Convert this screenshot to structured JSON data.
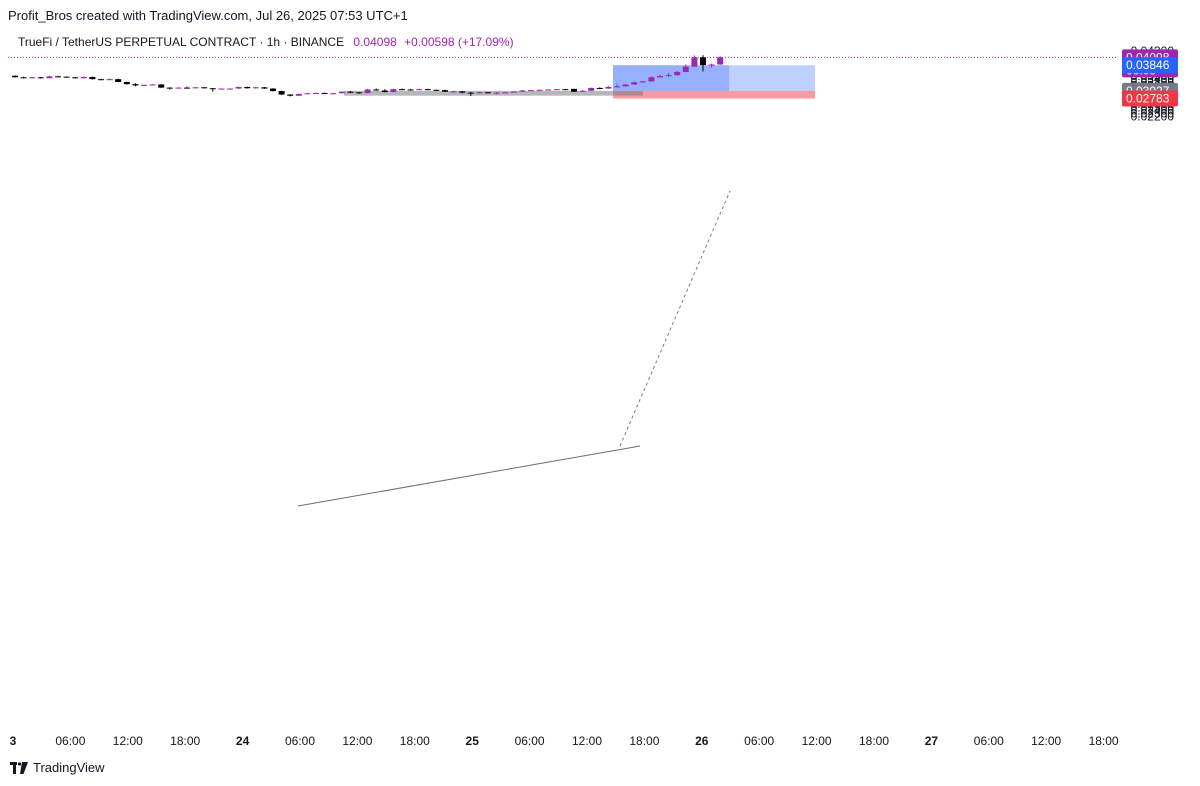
{
  "credit": "Profit_Bros created with TradingView.com, Jul 26, 2025 07:53 UTC+1",
  "legend": {
    "symbol": "TrueFi / TetherUS PERPETUAL CONTRACT · 1h · BINANCE",
    "last": "0.04098",
    "change": "+0.00598 (+17.09%)"
  },
  "footer": {
    "brand": "TradingView"
  },
  "colors": {
    "up": "#9c27b0",
    "down": "#000000",
    "target_zone": "#2962ff",
    "stop_zone": "#f23645",
    "range_box": "#787b86"
  },
  "chart_data": {
    "type": "candlestick",
    "timeframe": "1h",
    "y_ticks": [
      "0.04300",
      "0.04200",
      "0.04100",
      "0.04000",
      "0.03900",
      "0.03800",
      "0.03700",
      "0.03600",
      "0.03500",
      "0.03400",
      "0.03300",
      "0.03200",
      "0.03100",
      "0.03000",
      "0.02900",
      "0.02800",
      "0.02700",
      "0.02600",
      "0.02500",
      "0.02400",
      "0.02300",
      "0.02200"
    ],
    "x_ticks": [
      {
        "label": "3",
        "bold": true
      },
      {
        "label": "06:00",
        "bold": false
      },
      {
        "label": "12:00",
        "bold": false
      },
      {
        "label": "18:00",
        "bold": false
      },
      {
        "label": "24",
        "bold": true
      },
      {
        "label": "06:00",
        "bold": false
      },
      {
        "label": "12:00",
        "bold": false
      },
      {
        "label": "18:00",
        "bold": false
      },
      {
        "label": "25",
        "bold": true
      },
      {
        "label": "06:00",
        "bold": false
      },
      {
        "label": "12:00",
        "bold": false
      },
      {
        "label": "18:00",
        "bold": false
      },
      {
        "label": "26",
        "bold": true
      },
      {
        "label": "06:00",
        "bold": false
      },
      {
        "label": "12:00",
        "bold": false
      },
      {
        "label": "18:00",
        "bold": false
      },
      {
        "label": "27",
        "bold": true
      },
      {
        "label": "06:00",
        "bold": false
      },
      {
        "label": "12:00",
        "bold": false
      },
      {
        "label": "18:00",
        "bold": false
      }
    ],
    "price_tags": [
      {
        "value": "0.04098",
        "sub": "06:08",
        "color": "#9c27b0"
      },
      {
        "value": "0.03846",
        "color": "#2962ff"
      },
      {
        "value": "0.03027",
        "color": "#787b86"
      },
      {
        "value": "0.02783",
        "color": "#f23645"
      }
    ],
    "last_price": 0.04098,
    "position": {
      "entry": 0.03027,
      "target": 0.03846,
      "stop": 0.02783
    },
    "range_box": {
      "top": 0.03025,
      "bottom": 0.02873
    },
    "candles": [
      [
        0.0351,
        0.0352,
        0.0345,
        0.0346
      ],
      [
        0.0346,
        0.0348,
        0.0342,
        0.0344
      ],
      [
        0.0344,
        0.0347,
        0.0342,
        0.0346
      ],
      [
        0.0346,
        0.0347,
        0.0342,
        0.0343
      ],
      [
        0.0343,
        0.035,
        0.0342,
        0.0349
      ],
      [
        0.0349,
        0.0351,
        0.0347,
        0.0348
      ],
      [
        0.0348,
        0.0349,
        0.0345,
        0.0346
      ],
      [
        0.0346,
        0.0347,
        0.0342,
        0.0343
      ],
      [
        0.0343,
        0.0348,
        0.0342,
        0.0347
      ],
      [
        0.0347,
        0.0348,
        0.0339,
        0.034
      ],
      [
        0.034,
        0.0341,
        0.0336,
        0.0338
      ],
      [
        0.0338,
        0.0342,
        0.0337,
        0.034
      ],
      [
        0.034,
        0.0341,
        0.033,
        0.0331
      ],
      [
        0.0331,
        0.0332,
        0.0323,
        0.0324
      ],
      [
        0.0324,
        0.0327,
        0.0317,
        0.032
      ],
      [
        0.032,
        0.0323,
        0.0319,
        0.0322
      ],
      [
        0.0322,
        0.0324,
        0.032,
        0.0323
      ],
      [
        0.0323,
        0.0324,
        0.0312,
        0.0313
      ],
      [
        0.0313,
        0.0314,
        0.0307,
        0.0311
      ],
      [
        0.0311,
        0.0314,
        0.031,
        0.0313
      ],
      [
        0.0313,
        0.0316,
        0.0311,
        0.0312
      ],
      [
        0.0312,
        0.0315,
        0.031,
        0.0314
      ],
      [
        0.0314,
        0.0315,
        0.031,
        0.0311
      ],
      [
        0.0311,
        0.0312,
        0.03,
        0.0309
      ],
      [
        0.0309,
        0.0311,
        0.0307,
        0.031
      ],
      [
        0.031,
        0.0311,
        0.0309,
        0.031
      ],
      [
        0.031,
        0.0316,
        0.0309,
        0.0315
      ],
      [
        0.0315,
        0.0316,
        0.031,
        0.0311
      ],
      [
        0.0311,
        0.0315,
        0.031,
        0.0314
      ],
      [
        0.0314,
        0.0315,
        0.0309,
        0.031
      ],
      [
        0.031,
        0.0311,
        0.0301,
        0.0302
      ],
      [
        0.0302,
        0.0303,
        0.0289,
        0.0291
      ],
      [
        0.0291,
        0.0292,
        0.0285,
        0.0287
      ],
      [
        0.0287,
        0.0294,
        0.0286,
        0.0293
      ],
      [
        0.0293,
        0.0296,
        0.0292,
        0.0295
      ],
      [
        0.0295,
        0.0297,
        0.0293,
        0.0296
      ],
      [
        0.0296,
        0.0297,
        0.0294,
        0.0295
      ],
      [
        0.0295,
        0.0296,
        0.0292,
        0.0295
      ],
      [
        0.0295,
        0.0301,
        0.0294,
        0.03
      ],
      [
        0.03,
        0.0302,
        0.0296,
        0.0298
      ],
      [
        0.0298,
        0.0299,
        0.0294,
        0.0296
      ],
      [
        0.0296,
        0.0309,
        0.0295,
        0.0307
      ],
      [
        0.0307,
        0.031,
        0.0303,
        0.0304
      ],
      [
        0.0304,
        0.0308,
        0.0298,
        0.0299
      ],
      [
        0.0299,
        0.0309,
        0.0298,
        0.0308
      ],
      [
        0.0308,
        0.031,
        0.0305,
        0.0307
      ],
      [
        0.0307,
        0.0309,
        0.0305,
        0.0306
      ],
      [
        0.0306,
        0.031,
        0.0305,
        0.0308
      ],
      [
        0.0308,
        0.0309,
        0.0305,
        0.0306
      ],
      [
        0.0306,
        0.0307,
        0.0303,
        0.0305
      ],
      [
        0.0305,
        0.0306,
        0.0299,
        0.03
      ],
      [
        0.03,
        0.0303,
        0.0298,
        0.0301
      ],
      [
        0.0301,
        0.0302,
        0.0295,
        0.0297
      ],
      [
        0.0297,
        0.0299,
        0.0286,
        0.0295
      ],
      [
        0.0295,
        0.0299,
        0.0294,
        0.0298
      ],
      [
        0.0298,
        0.0299,
        0.0295,
        0.0296
      ],
      [
        0.0296,
        0.0299,
        0.0292,
        0.0297
      ],
      [
        0.0297,
        0.0299,
        0.0296,
        0.0298
      ],
      [
        0.0298,
        0.0301,
        0.0297,
        0.03
      ],
      [
        0.03,
        0.0305,
        0.0299,
        0.0304
      ],
      [
        0.0304,
        0.0306,
        0.0302,
        0.0305
      ],
      [
        0.0305,
        0.0307,
        0.0304,
        0.0306
      ],
      [
        0.0306,
        0.0308,
        0.0305,
        0.0307
      ],
      [
        0.0307,
        0.0309,
        0.0306,
        0.0308
      ],
      [
        0.0308,
        0.0309,
        0.0306,
        0.0306
      ],
      [
        0.0309,
        0.0309,
        0.0299,
        0.03
      ],
      [
        0.03,
        0.0305,
        0.0299,
        0.0303
      ],
      [
        0.0303,
        0.0313,
        0.0302,
        0.0312
      ],
      [
        0.0312,
        0.0314,
        0.0308,
        0.031
      ],
      [
        0.031,
        0.0318,
        0.0309,
        0.0315
      ],
      [
        0.0315,
        0.0324,
        0.0314,
        0.0317
      ],
      [
        0.0317,
        0.0324,
        0.0316,
        0.0323
      ],
      [
        0.0323,
        0.0332,
        0.0322,
        0.033
      ],
      [
        0.033,
        0.0334,
        0.0328,
        0.0333
      ],
      [
        0.0333,
        0.0349,
        0.0332,
        0.0346
      ],
      [
        0.0346,
        0.0354,
        0.0345,
        0.035
      ],
      [
        0.035,
        0.0359,
        0.0347,
        0.0353
      ],
      [
        0.0353,
        0.0366,
        0.0351,
        0.0363
      ],
      [
        0.0363,
        0.0387,
        0.0362,
        0.038
      ],
      [
        0.038,
        0.0416,
        0.0379,
        0.041
      ],
      [
        0.041,
        0.0417,
        0.0365,
        0.0385
      ],
      [
        0.0385,
        0.039,
        0.0377,
        0.0387
      ],
      [
        0.0387,
        0.0413,
        0.0385,
        0.04098
      ]
    ]
  }
}
